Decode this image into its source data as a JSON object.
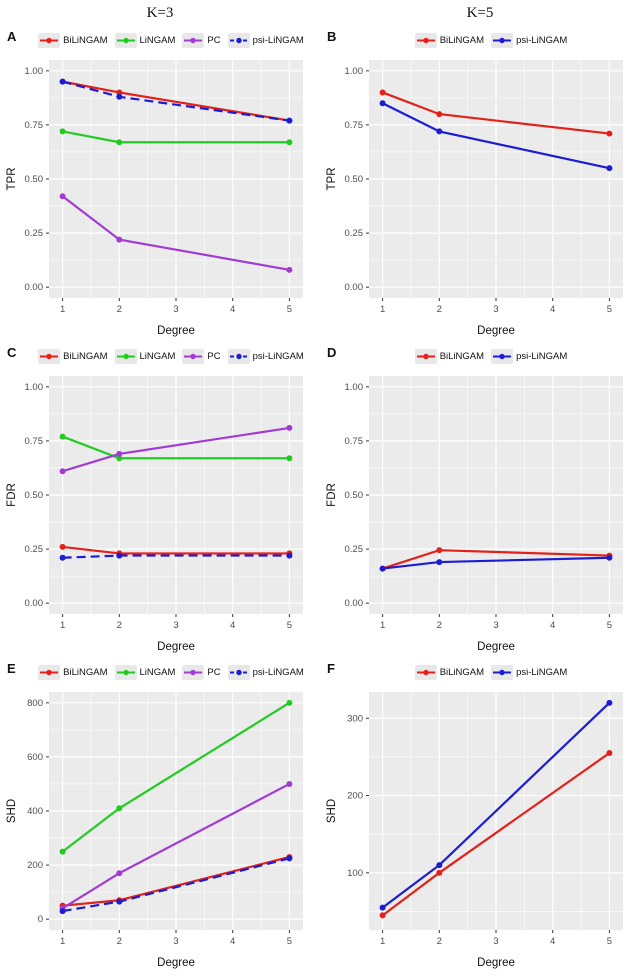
{
  "headers": [
    "K=3",
    "K=5"
  ],
  "colors": {
    "BiLiNGAM": "#e3201a",
    "LiNGAM": "#21cc21",
    "PC": "#a23bd4",
    "psi-LiNGAM": "#1c1cd2"
  },
  "chart_data": [
    {
      "type": "line",
      "letter": "A",
      "xlabel": "Degree",
      "ylabel": "TPR",
      "x": [
        1,
        2,
        5
      ],
      "xlim": [
        1,
        5
      ],
      "xticks": [
        1,
        2,
        3,
        4,
        5
      ],
      "ylim": [
        0,
        1
      ],
      "yticks": [
        0,
        0.25,
        0.5,
        0.75,
        1
      ],
      "ytick_labels": [
        "0.00",
        "0.25",
        "0.50",
        "0.75",
        "1.00"
      ],
      "series": [
        {
          "name": "BiLiNGAM",
          "color": "BiLiNGAM",
          "dash": false,
          "values": [
            0.95,
            0.9,
            0.77
          ]
        },
        {
          "name": "LiNGAM",
          "color": "LiNGAM",
          "dash": false,
          "values": [
            0.72,
            0.67,
            0.67
          ]
        },
        {
          "name": "PC",
          "color": "PC",
          "dash": false,
          "values": [
            0.42,
            0.22,
            0.08
          ]
        },
        {
          "name": "psi-LiNGAM",
          "color": "psi-LiNGAM",
          "dash": true,
          "values": [
            0.95,
            0.88,
            0.77
          ]
        }
      ]
    },
    {
      "type": "line",
      "letter": "B",
      "xlabel": "Degree",
      "ylabel": "TPR",
      "x": [
        1,
        2,
        5
      ],
      "xlim": [
        1,
        5
      ],
      "xticks": [
        1,
        2,
        3,
        4,
        5
      ],
      "ylim": [
        0,
        1
      ],
      "yticks": [
        0,
        0.25,
        0.5,
        0.75,
        1
      ],
      "ytick_labels": [
        "0.00",
        "0.25",
        "0.50",
        "0.75",
        "1.00"
      ],
      "series": [
        {
          "name": "BiLiNGAM",
          "color": "BiLiNGAM",
          "dash": false,
          "values": [
            0.9,
            0.8,
            0.71
          ]
        },
        {
          "name": "psi-LiNGAM",
          "color": "psi-LiNGAM",
          "dash": false,
          "values": [
            0.85,
            0.72,
            0.55
          ]
        }
      ]
    },
    {
      "type": "line",
      "letter": "C",
      "xlabel": "Degree",
      "ylabel": "FDR",
      "x": [
        1,
        2,
        5
      ],
      "xlim": [
        1,
        5
      ],
      "xticks": [
        1,
        2,
        3,
        4,
        5
      ],
      "ylim": [
        0,
        1
      ],
      "yticks": [
        0,
        0.25,
        0.5,
        0.75,
        1
      ],
      "ytick_labels": [
        "0.00",
        "0.25",
        "0.50",
        "0.75",
        "1.00"
      ],
      "series": [
        {
          "name": "BiLiNGAM",
          "color": "BiLiNGAM",
          "dash": false,
          "values": [
            0.26,
            0.23,
            0.23
          ]
        },
        {
          "name": "LiNGAM",
          "color": "LiNGAM",
          "dash": false,
          "values": [
            0.77,
            0.67,
            0.67
          ]
        },
        {
          "name": "PC",
          "color": "PC",
          "dash": false,
          "values": [
            0.61,
            0.69,
            0.81
          ]
        },
        {
          "name": "psi-LiNGAM",
          "color": "psi-LiNGAM",
          "dash": true,
          "values": [
            0.21,
            0.22,
            0.22
          ]
        }
      ]
    },
    {
      "type": "line",
      "letter": "D",
      "xlabel": "Degree",
      "ylabel": "FDR",
      "x": [
        1,
        2,
        5
      ],
      "xlim": [
        1,
        5
      ],
      "xticks": [
        1,
        2,
        3,
        4,
        5
      ],
      "ylim": [
        0,
        1
      ],
      "yticks": [
        0,
        0.25,
        0.5,
        0.75,
        1
      ],
      "ytick_labels": [
        "0.00",
        "0.25",
        "0.50",
        "0.75",
        "1.00"
      ],
      "series": [
        {
          "name": "BiLiNGAM",
          "color": "BiLiNGAM",
          "dash": false,
          "values": [
            0.16,
            0.245,
            0.22
          ]
        },
        {
          "name": "psi-LiNGAM",
          "color": "psi-LiNGAM",
          "dash": false,
          "values": [
            0.16,
            0.19,
            0.21
          ]
        }
      ]
    },
    {
      "type": "line",
      "letter": "E",
      "xlabel": "Degree",
      "ylabel": "SHD",
      "x": [
        1,
        2,
        5
      ],
      "xlim": [
        1,
        5
      ],
      "xticks": [
        1,
        2,
        3,
        4,
        5
      ],
      "ylim": [
        0,
        800
      ],
      "yticks": [
        0,
        200,
        400,
        600,
        800
      ],
      "ytick_labels": [
        "0",
        "200",
        "400",
        "600",
        "800"
      ],
      "series": [
        {
          "name": "BiLiNGAM",
          "color": "BiLiNGAM",
          "dash": false,
          "values": [
            50,
            70,
            230
          ]
        },
        {
          "name": "LiNGAM",
          "color": "LiNGAM",
          "dash": false,
          "values": [
            250,
            410,
            800
          ]
        },
        {
          "name": "PC",
          "color": "PC",
          "dash": false,
          "values": [
            40,
            170,
            500
          ]
        },
        {
          "name": "psi-LiNGAM",
          "color": "psi-LiNGAM",
          "dash": true,
          "values": [
            30,
            65,
            225
          ]
        }
      ]
    },
    {
      "type": "line",
      "letter": "F",
      "xlabel": "Degree",
      "ylabel": "SHD",
      "x": [
        1,
        2,
        5
      ],
      "xlim": [
        1,
        5
      ],
      "xticks": [
        1,
        2,
        3,
        4,
        5
      ],
      "ylim": [
        40,
        320
      ],
      "yticks": [
        100,
        200,
        300
      ],
      "ytick_labels": [
        "100",
        "200",
        "300"
      ],
      "series": [
        {
          "name": "BiLiNGAM",
          "color": "BiLiNGAM",
          "dash": false,
          "values": [
            45,
            100,
            255
          ]
        },
        {
          "name": "psi-LiNGAM",
          "color": "psi-LiNGAM",
          "dash": false,
          "values": [
            55,
            110,
            320
          ]
        }
      ]
    }
  ]
}
